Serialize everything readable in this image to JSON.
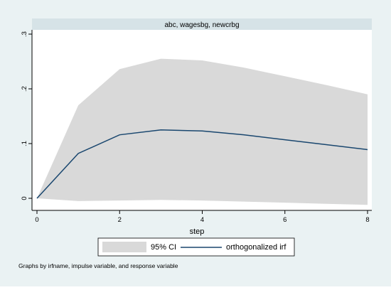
{
  "chart_data": {
    "type": "line",
    "panel_title": "abc, wagesbg, newcrbg",
    "xlabel": "step",
    "ylabel": "",
    "x_ticks": [
      "0",
      "2",
      "4",
      "6",
      "8"
    ],
    "y_ticks": [
      "0",
      ".1",
      ".2",
      ".3"
    ],
    "xlim": [
      0,
      8
    ],
    "ylim": [
      0,
      0.3
    ],
    "x": [
      0,
      1,
      2,
      3,
      4,
      5,
      6,
      7,
      8
    ],
    "series": [
      {
        "name": "orthogonalized irf",
        "values": [
          0,
          0.082,
          0.116,
          0.125,
          0.123,
          0.116,
          0.107,
          0.098,
          0.089
        ],
        "color": "#1a476f"
      }
    ],
    "ci_band": {
      "name": "95% CI",
      "lower": [
        0,
        -0.005,
        -0.004,
        -0.003,
        -0.004,
        -0.006,
        -0.008,
        -0.01,
        -0.012
      ],
      "upper": [
        0,
        0.17,
        0.236,
        0.255,
        0.252,
        0.239,
        0.223,
        0.207,
        0.19
      ],
      "color": "#d9d9d9"
    },
    "legend": {
      "position": "bottom",
      "items": [
        "95% CI",
        "orthogonalized irf"
      ]
    },
    "note": "Graphs by irfname, impulse variable, and response variable",
    "grid": false,
    "colors": {
      "outer_background": "#eaf2f3",
      "plot_background": "#ffffff",
      "panel_header": "#d6e3e7",
      "axis": "#000000"
    }
  }
}
